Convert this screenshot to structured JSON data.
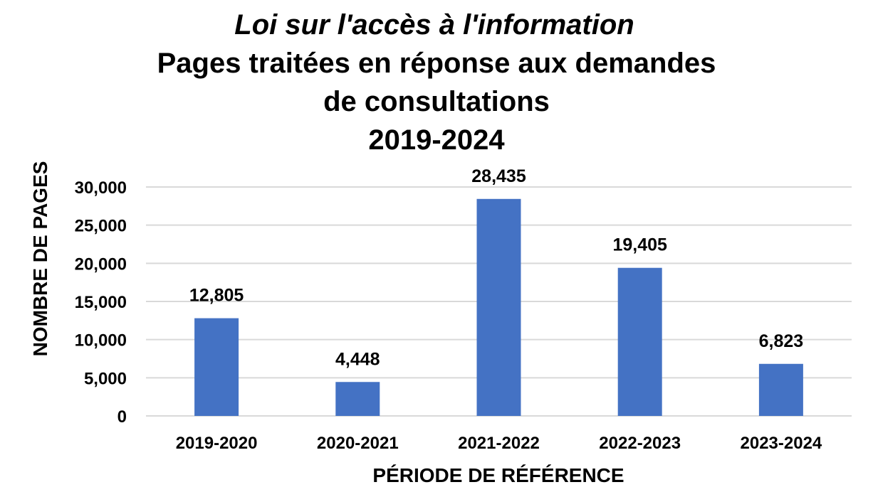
{
  "chart_data": {
    "type": "bar",
    "title_lines": [
      "Loi sur l'accès à l'information",
      "Pages traitées en réponse aux demandes",
      "de consultations",
      "2019-2024"
    ],
    "categories": [
      "2019-2020",
      "2020-2021",
      "2021-2022",
      "2022-2023",
      "2023-2024"
    ],
    "values": [
      12805,
      4448,
      28435,
      19405,
      6823
    ],
    "value_labels": [
      "12,805",
      "4,448",
      "28,435",
      "19,405",
      "6,823"
    ],
    "yticks": [
      0,
      5000,
      10000,
      15000,
      20000,
      25000,
      30000
    ],
    "ytick_labels": [
      "0",
      "5,000",
      "10,000",
      "15,000",
      "20,000",
      "25,000",
      "30,000"
    ],
    "ylim": [
      0,
      30000
    ],
    "xlabel": "PÉRIODE DE RÉFÉRENCE",
    "ylabel": "NOMBRE DE PAGES",
    "grid": true,
    "bar_color": "#4472c4",
    "grid_color": "#d9d9d9"
  }
}
